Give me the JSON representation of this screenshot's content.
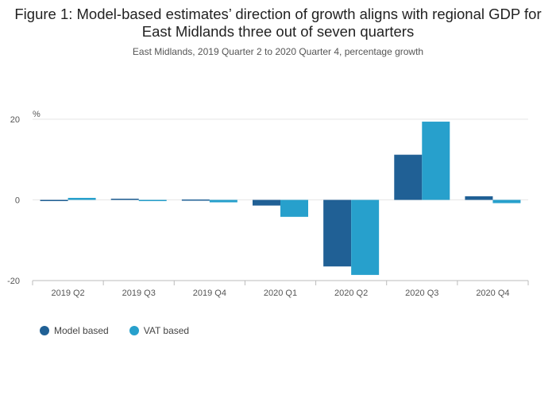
{
  "title": "Figure 1: Model-based estimates’ direction of growth aligns with regional GDP for East Midlands three out of seven quarters",
  "subtitle": "East Midlands, 2019 Quarter 2 to 2020 Quarter 4, percentage growth",
  "colors": {
    "model": "#206095",
    "vat": "#27a0cc",
    "grid": "#e6e6e6",
    "axis": "#bbbbbb"
  },
  "chart_data": {
    "type": "bar",
    "ylabel": "%",
    "ylim": [
      -20,
      20
    ],
    "yticks": [
      "20",
      "0",
      "-20"
    ],
    "categories": [
      "2019 Q2",
      "2019 Q3",
      "2019 Q4",
      "2020 Q1",
      "2020 Q2",
      "2020 Q3",
      "2020 Q4"
    ],
    "series": [
      {
        "name": "Model based",
        "values": [
          -0.2,
          0.3,
          0.1,
          -1.4,
          -16.5,
          11.2,
          0.9
        ]
      },
      {
        "name": "VAT based",
        "values": [
          0.5,
          -0.3,
          -0.6,
          -4.2,
          -18.6,
          19.4,
          -0.8
        ]
      }
    ],
    "grid": true,
    "legend_position": "bottom-left"
  }
}
